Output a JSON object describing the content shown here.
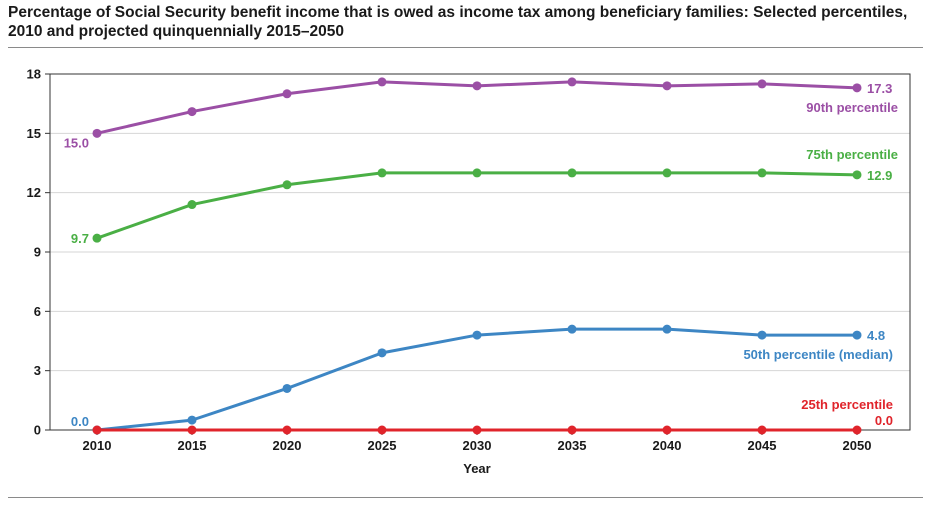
{
  "title": "Percentage of Social Security benefit income that is owed as income tax among beneficiary families: Selected percentiles, 2010 and projected quinquennially 2015–2050",
  "chart_data": {
    "type": "line",
    "x": [
      2010,
      2015,
      2020,
      2025,
      2030,
      2035,
      2040,
      2045,
      2050
    ],
    "x_ticks": [
      "2010",
      "2015",
      "2020",
      "2025",
      "2030",
      "2035",
      "2040",
      "2045",
      "2050"
    ],
    "y_ticks": [
      "0",
      "3",
      "6",
      "9",
      "12",
      "15",
      "18"
    ],
    "xlabel": "Year",
    "ylabel": "",
    "ylim": [
      0,
      18
    ],
    "grid": "horizontal",
    "series": [
      {
        "name": "90th percentile",
        "color": "#9b4fa5",
        "values": [
          15.0,
          16.1,
          17.0,
          17.6,
          17.4,
          17.6,
          17.4,
          17.5,
          17.3
        ],
        "start_label": "15.0",
        "end_label": "17.3"
      },
      {
        "name": "75th percentile",
        "color": "#4aaf45",
        "values": [
          9.7,
          11.4,
          12.4,
          13.0,
          13.0,
          13.0,
          13.0,
          13.0,
          12.9
        ],
        "start_label": "9.7",
        "end_label": "12.9"
      },
      {
        "name": "50th percentile (median)",
        "color": "#3d86c4",
        "values": [
          0.0,
          0.5,
          2.1,
          3.9,
          4.8,
          5.1,
          5.1,
          4.8,
          4.8
        ],
        "start_label": "0.0",
        "end_label": "4.8"
      },
      {
        "name": "25th percentile",
        "color": "#e0242b",
        "values": [
          0.0,
          0.0,
          0.0,
          0.0,
          0.0,
          0.0,
          0.0,
          0.0,
          0.0
        ],
        "end_label": "0.0"
      }
    ]
  }
}
